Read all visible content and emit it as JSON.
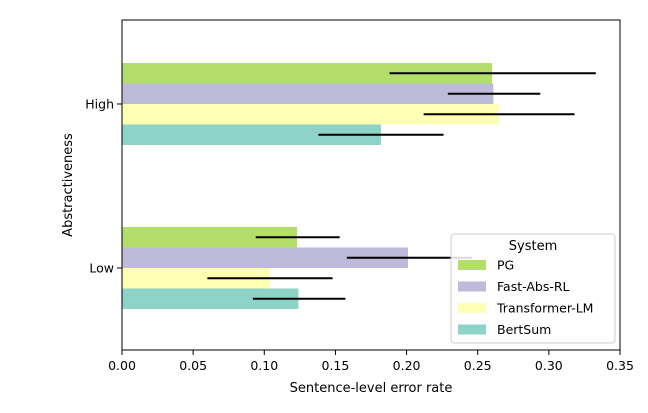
{
  "chart_data": {
    "type": "bar",
    "orientation": "horizontal",
    "title": "",
    "xlabel": "Sentence-level error rate",
    "ylabel": "Abstractiveness",
    "xlim": [
      0,
      0.35
    ],
    "xticks": [
      0.0,
      0.05,
      0.1,
      0.15,
      0.2,
      0.25,
      0.3,
      0.35
    ],
    "xtick_labels": [
      "0.00",
      "0.05",
      "0.10",
      "0.15",
      "0.20",
      "0.25",
      "0.30",
      "0.35"
    ],
    "categories": [
      "High",
      "Low"
    ],
    "grid": false,
    "legend": {
      "title": "System",
      "position": "lower-right"
    },
    "series": [
      {
        "name": "PG",
        "color": "#b3de69",
        "values": [
          0.26,
          0.123
        ],
        "err_low": [
          0.188,
          0.094
        ],
        "err_high": [
          0.333,
          0.153
        ]
      },
      {
        "name": "Fast-Abs-RL",
        "color": "#bebada",
        "values": [
          0.261,
          0.201
        ],
        "err_low": [
          0.229,
          0.158
        ],
        "err_high": [
          0.294,
          0.246
        ]
      },
      {
        "name": "Transformer-LM",
        "color": "#ffffb3",
        "values": [
          0.265,
          0.104
        ],
        "err_low": [
          0.212,
          0.06
        ],
        "err_high": [
          0.318,
          0.148
        ]
      },
      {
        "name": "BertSum",
        "color": "#8dd3c7",
        "values": [
          0.182,
          0.124
        ],
        "err_low": [
          0.138,
          0.092
        ],
        "err_high": [
          0.226,
          0.157
        ]
      }
    ]
  }
}
